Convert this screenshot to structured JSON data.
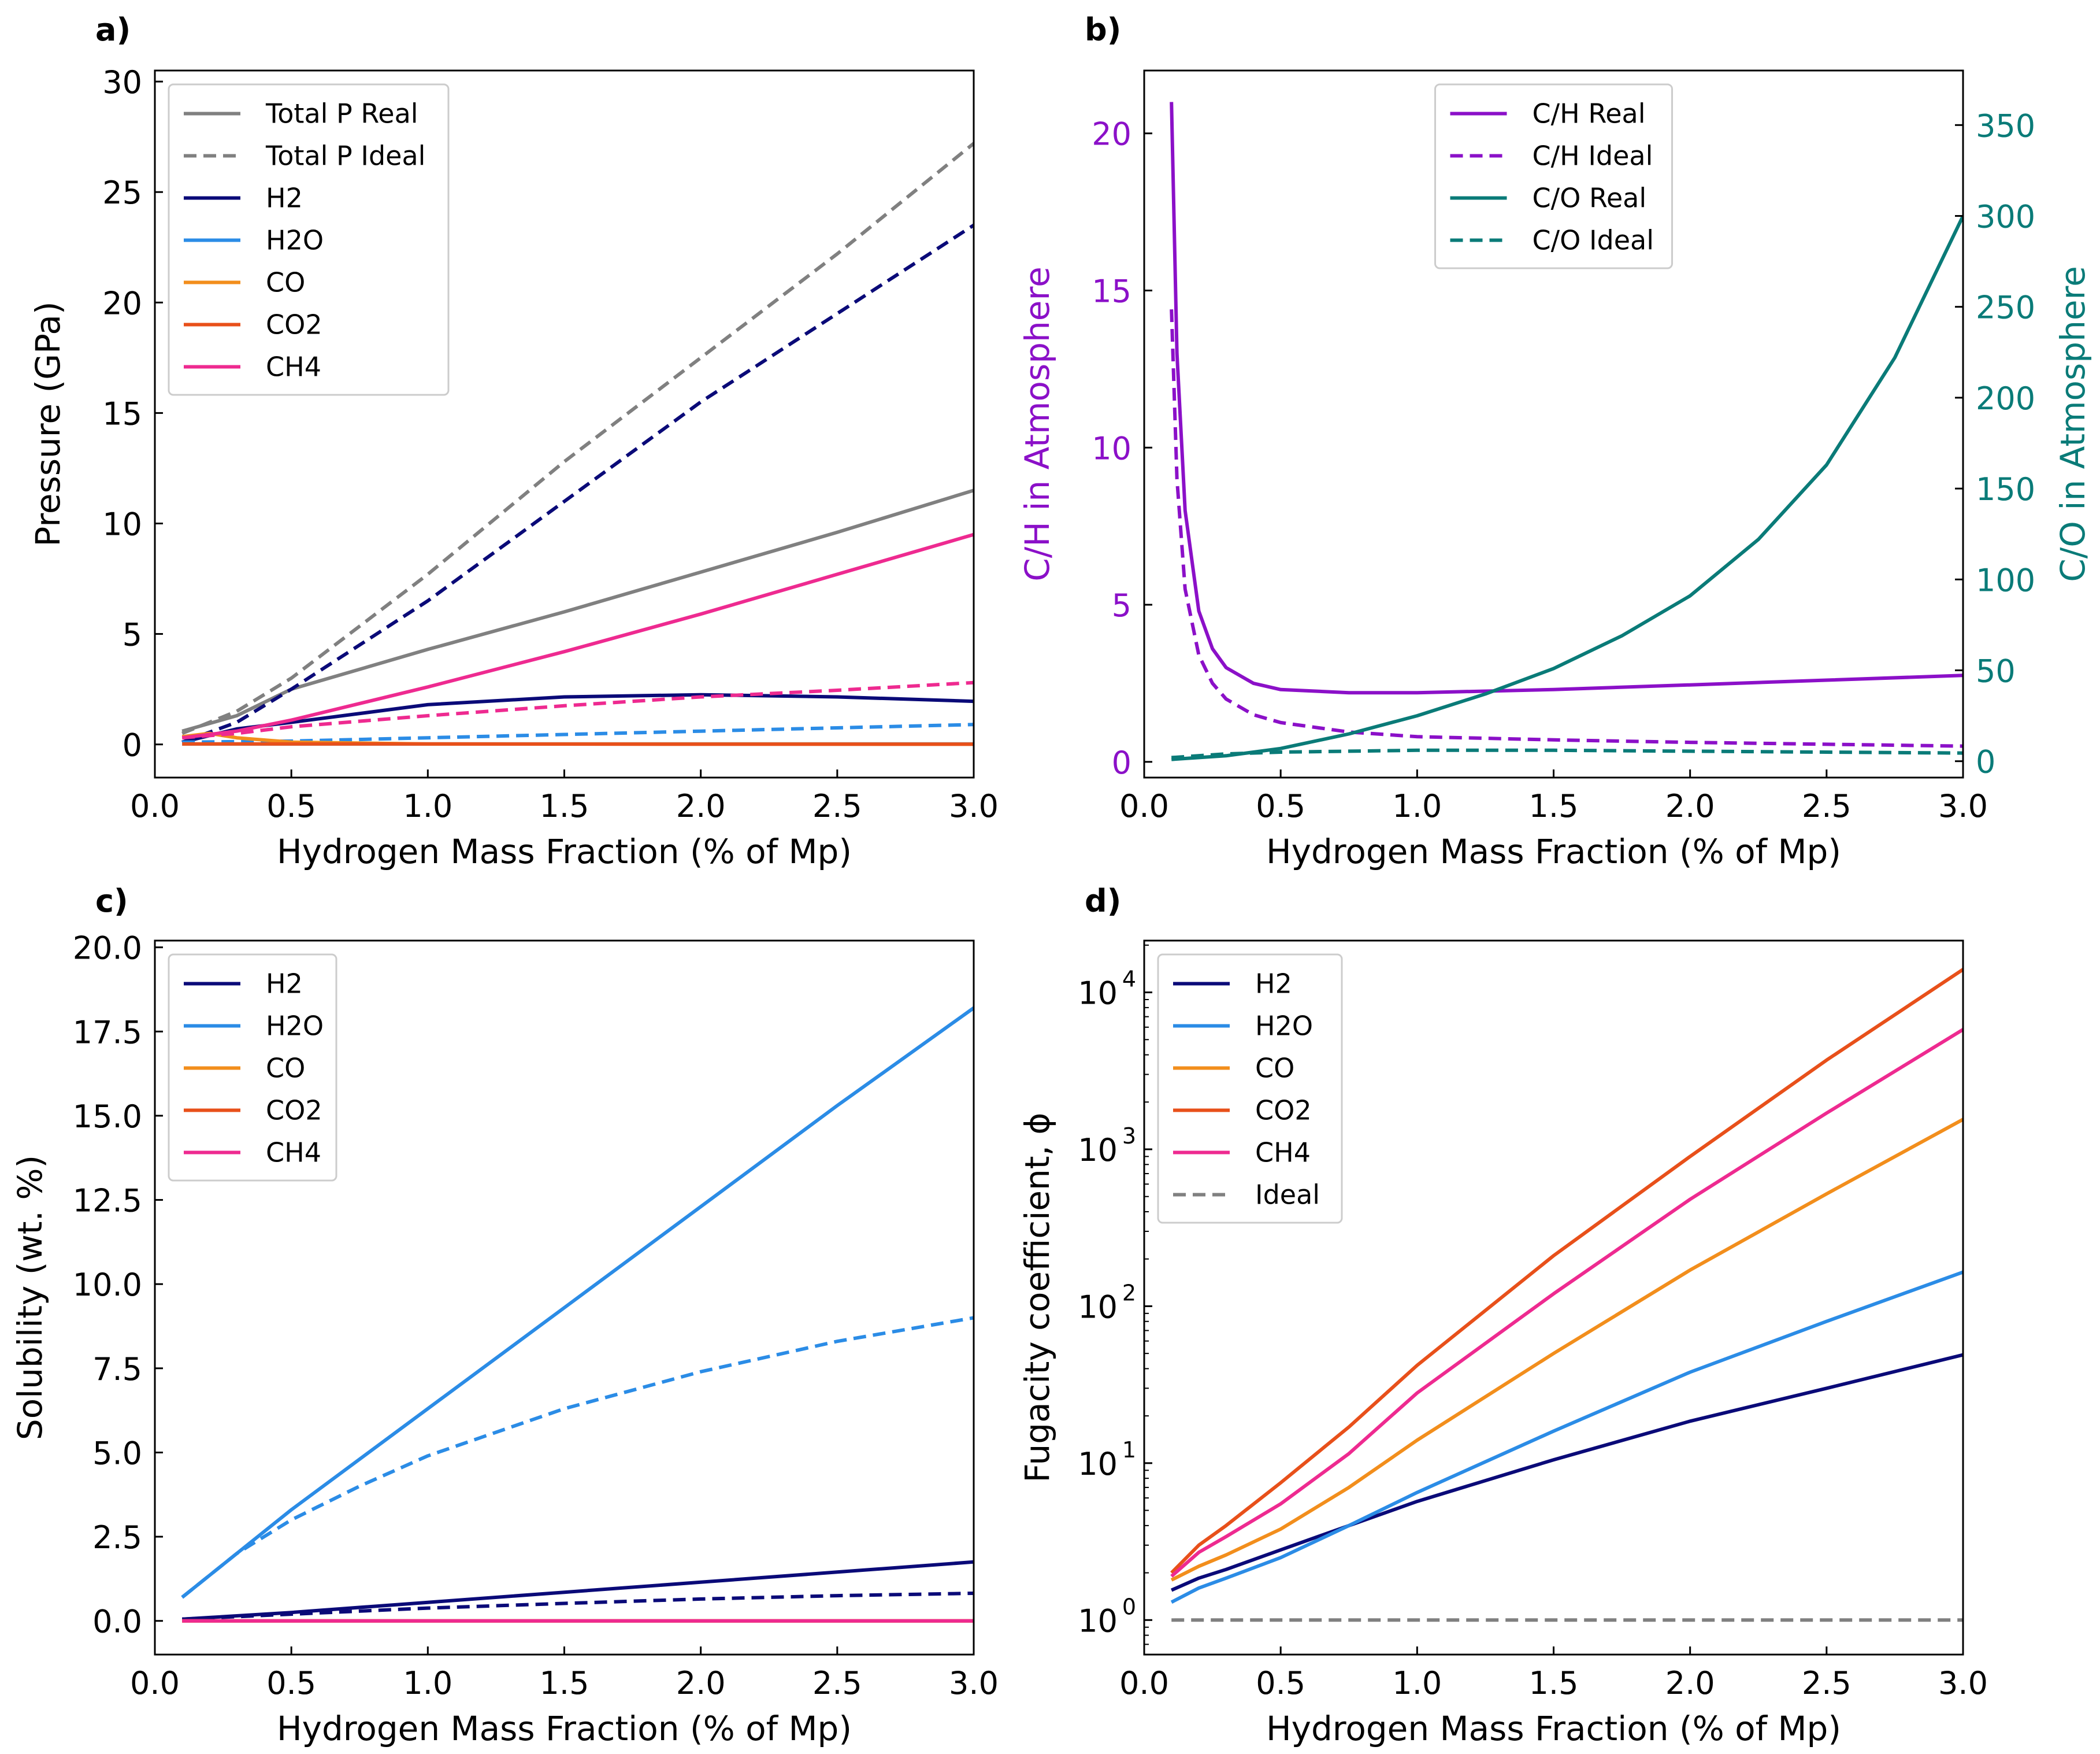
{
  "chart_data": [
    {
      "panel_label": "a)",
      "type": "line",
      "xlabel": "Hydrogen Mass Fraction (% of Mp)",
      "ylabel": "Pressure (GPa)",
      "xlim": [
        0.0,
        3.0
      ],
      "ylim": [
        -1.5,
        30.5
      ],
      "xticks": [
        "0.0",
        "0.5",
        "1.0",
        "1.5",
        "2.0",
        "2.5",
        "3.0"
      ],
      "yticks": [
        "0",
        "5",
        "10",
        "15",
        "20",
        "25",
        "30"
      ],
      "legend": [
        "Total P Real",
        "Total P Ideal",
        "H2",
        "H2O",
        "CO",
        "CO2",
        "CH4"
      ],
      "legend_position": "upper-left",
      "series": [
        {
          "name": "Total P Real",
          "color": "#808080",
          "dash": false,
          "x": [
            0.1,
            0.3,
            0.5,
            1.0,
            1.5,
            2.0,
            2.5,
            3.0
          ],
          "y": [
            0.6,
            1.3,
            2.5,
            4.3,
            6.0,
            7.8,
            9.6,
            11.5
          ]
        },
        {
          "name": "Total P Ideal",
          "color": "#808080",
          "dash": true,
          "x": [
            0.1,
            0.3,
            0.5,
            1.0,
            1.5,
            2.0,
            2.5,
            3.0
          ],
          "y": [
            0.5,
            1.5,
            3.0,
            7.7,
            12.8,
            17.5,
            22.2,
            27.2
          ]
        },
        {
          "name": "H2",
          "color": "#0a0a78",
          "dash": false,
          "x": [
            0.1,
            0.3,
            0.5,
            1.0,
            1.5,
            2.0,
            2.5,
            3.0
          ],
          "y": [
            0.1,
            0.7,
            1.0,
            1.8,
            2.15,
            2.25,
            2.15,
            1.95
          ]
        },
        {
          "name": "H2 Ideal",
          "color": "#0a0a78",
          "dash": true,
          "x": [
            0.1,
            0.3,
            0.5,
            1.0,
            1.5,
            2.0,
            2.5,
            3.0
          ],
          "y": [
            0.1,
            1.0,
            2.5,
            6.5,
            11.0,
            15.5,
            19.5,
            23.5
          ]
        },
        {
          "name": "H2O",
          "color": "#2b8ce6",
          "dash": false,
          "x": [
            0.1,
            0.3,
            0.5,
            1.0,
            1.5,
            2.0,
            2.5,
            3.0
          ],
          "y": [
            0.02,
            0.02,
            0.02,
            0.02,
            0.02,
            0.02,
            0.02,
            0.02
          ]
        },
        {
          "name": "H2O Ideal",
          "color": "#2b8ce6",
          "dash": true,
          "x": [
            0.1,
            0.5,
            1.0,
            1.5,
            2.0,
            2.5,
            3.0
          ],
          "y": [
            0.1,
            0.15,
            0.3,
            0.45,
            0.6,
            0.75,
            0.9
          ]
        },
        {
          "name": "CO",
          "color": "#f28e1c",
          "dash": false,
          "x": [
            0.1,
            0.2,
            0.3,
            0.5,
            1.0,
            3.0
          ],
          "y": [
            0.35,
            0.5,
            0.3,
            0.1,
            0.02,
            0.01
          ]
        },
        {
          "name": "CO2",
          "color": "#e8501a",
          "dash": false,
          "x": [
            0.1,
            0.5,
            1.0,
            2.0,
            3.0
          ],
          "y": [
            0.02,
            0.02,
            0.02,
            0.01,
            0.01
          ]
        },
        {
          "name": "CH4",
          "color": "#ee2a90",
          "dash": false,
          "x": [
            0.1,
            0.3,
            0.5,
            1.0,
            1.5,
            2.0,
            2.5,
            3.0
          ],
          "y": [
            0.3,
            0.6,
            1.1,
            2.6,
            4.2,
            5.9,
            7.7,
            9.5
          ]
        },
        {
          "name": "CH4 Ideal",
          "color": "#ee2a90",
          "dash": true,
          "x": [
            0.1,
            0.3,
            0.5,
            1.0,
            1.5,
            2.0,
            2.5,
            3.0
          ],
          "y": [
            0.3,
            0.5,
            0.8,
            1.3,
            1.75,
            2.15,
            2.45,
            2.8
          ]
        }
      ]
    },
    {
      "panel_label": "b)",
      "type": "line",
      "xlabel": "Hydrogen Mass Fraction (% of Mp)",
      "ylabel": "C/H in Atmosphere",
      "ylabel_color": "#8b10c8",
      "y2label": "C/O in Atmosphere",
      "y2label_color": "#0a7b78",
      "xlim": [
        0.0,
        3.0
      ],
      "ylim": [
        -0.5,
        22.0
      ],
      "y2lim": [
        -9,
        380
      ],
      "xticks": [
        "0.0",
        "0.5",
        "1.0",
        "1.5",
        "2.0",
        "2.5",
        "3.0"
      ],
      "yticks": [
        "0",
        "5",
        "10",
        "15",
        "20"
      ],
      "y2ticks": [
        "0",
        "50",
        "100",
        "150",
        "200",
        "250",
        "300",
        "350"
      ],
      "legend": [
        "C/H Real",
        "C/H Ideal",
        "C/O Real",
        "C/O Ideal"
      ],
      "legend_position": "upper-center",
      "series": [
        {
          "name": "C/H Real",
          "axis": "left",
          "color": "#8b10c8",
          "dash": false,
          "x": [
            0.1,
            0.12,
            0.15,
            0.2,
            0.25,
            0.3,
            0.4,
            0.5,
            0.75,
            1.0,
            1.5,
            2.0,
            2.5,
            3.0
          ],
          "y": [
            21.0,
            13.0,
            8.0,
            4.8,
            3.6,
            3.0,
            2.5,
            2.3,
            2.2,
            2.2,
            2.3,
            2.45,
            2.6,
            2.75
          ]
        },
        {
          "name": "C/H Ideal",
          "axis": "left",
          "color": "#8b10c8",
          "dash": true,
          "x": [
            0.1,
            0.12,
            0.15,
            0.2,
            0.25,
            0.3,
            0.4,
            0.5,
            0.75,
            1.0,
            1.5,
            2.0,
            2.5,
            3.0
          ],
          "y": [
            14.4,
            9.0,
            5.5,
            3.4,
            2.5,
            2.0,
            1.5,
            1.25,
            0.95,
            0.8,
            0.7,
            0.62,
            0.56,
            0.5
          ]
        },
        {
          "name": "C/O Real",
          "axis": "right",
          "color": "#0a7b78",
          "dash": false,
          "x": [
            0.1,
            0.3,
            0.5,
            0.75,
            1.0,
            1.25,
            1.5,
            1.75,
            2.0,
            2.25,
            2.5,
            2.75,
            3.0
          ],
          "y": [
            1,
            3,
            7,
            15,
            25,
            37,
            51,
            69,
            91,
            122,
            163,
            222,
            300
          ]
        },
        {
          "name": "C/O Ideal",
          "axis": "right",
          "color": "#0a7b78",
          "dash": true,
          "x": [
            0.1,
            0.3,
            0.5,
            1.0,
            1.5,
            2.0,
            2.5,
            3.0
          ],
          "y": [
            2,
            4,
            5,
            6,
            6,
            5.5,
            5,
            4.5
          ]
        }
      ]
    },
    {
      "panel_label": "c)",
      "type": "line",
      "xlabel": "Hydrogen Mass Fraction (% of Mp)",
      "ylabel": "Solubility (wt. %)",
      "xlim": [
        0.0,
        3.0
      ],
      "ylim": [
        -1.0,
        20.2
      ],
      "xticks": [
        "0.0",
        "0.5",
        "1.0",
        "1.5",
        "2.0",
        "2.5",
        "3.0"
      ],
      "yticks": [
        "0.0",
        "2.5",
        "5.0",
        "7.5",
        "10.0",
        "12.5",
        "15.0",
        "17.5",
        "20.0"
      ],
      "legend": [
        "H2",
        "H2O",
        "CO",
        "CO2",
        "CH4"
      ],
      "legend_position": "upper-left",
      "series": [
        {
          "name": "H2",
          "color": "#0a0a78",
          "dash": false,
          "x": [
            0.1,
            0.5,
            1.0,
            1.5,
            2.0,
            2.5,
            3.0
          ],
          "y": [
            0.05,
            0.25,
            0.55,
            0.85,
            1.15,
            1.45,
            1.75
          ]
        },
        {
          "name": "H2 Ideal",
          "color": "#0a0a78",
          "dash": true,
          "x": [
            0.1,
            0.5,
            1.0,
            1.5,
            2.0,
            2.5,
            3.0
          ],
          "y": [
            0.05,
            0.2,
            0.38,
            0.52,
            0.65,
            0.75,
            0.82
          ]
        },
        {
          "name": "H2O",
          "color": "#2b8ce6",
          "dash": false,
          "x": [
            0.1,
            0.3,
            0.5,
            1.0,
            1.5,
            2.0,
            2.5,
            3.0
          ],
          "y": [
            0.7,
            2.0,
            3.3,
            6.3,
            9.3,
            12.3,
            15.3,
            18.2
          ]
        },
        {
          "name": "H2O Ideal",
          "color": "#2b8ce6",
          "dash": true,
          "x": [
            0.1,
            0.3,
            0.5,
            0.75,
            1.0,
            1.5,
            2.0,
            2.5,
            3.0
          ],
          "y": [
            0.7,
            2.0,
            3.0,
            4.0,
            4.9,
            6.3,
            7.4,
            8.3,
            9.0
          ]
        },
        {
          "name": "CO",
          "color": "#f28e1c",
          "dash": false,
          "x": [
            0.1,
            3.0
          ],
          "y": [
            0.0,
            0.0
          ]
        },
        {
          "name": "CO2",
          "color": "#e8501a",
          "dash": false,
          "x": [
            0.1,
            3.0
          ],
          "y": [
            0.0,
            0.0
          ]
        },
        {
          "name": "CH4",
          "color": "#ee2a90",
          "dash": false,
          "x": [
            0.1,
            3.0
          ],
          "y": [
            0.0,
            0.0
          ]
        }
      ]
    },
    {
      "panel_label": "d)",
      "type": "line",
      "yscale": "log",
      "xlabel": "Hydrogen Mass Fraction (% of Mp)",
      "ylabel": "Fugacity coefficient, ϕ",
      "xlim": [
        0.0,
        3.0
      ],
      "ylog_lim": [
        -0.22,
        4.33
      ],
      "xticks": [
        "0.0",
        "0.5",
        "1.0",
        "1.5",
        "2.0",
        "2.5",
        "3.0"
      ],
      "yticks_base": [
        "10",
        "10",
        "10",
        "10",
        "10"
      ],
      "yticks_exp": [
        "0",
        "1",
        "2",
        "3",
        "4"
      ],
      "legend": [
        "H2",
        "H2O",
        "CO",
        "CO2",
        "CH4",
        "Ideal"
      ],
      "legend_position": "upper-left",
      "series": [
        {
          "name": "H2",
          "color": "#0a0a78",
          "dash": false,
          "x": [
            0.1,
            0.2,
            0.3,
            0.5,
            0.75,
            1.0,
            1.5,
            2.0,
            2.5,
            3.0
          ],
          "y": [
            1.55,
            1.85,
            2.1,
            2.8,
            4.0,
            5.7,
            10.5,
            18.5,
            30.0,
            49.0
          ]
        },
        {
          "name": "H2O",
          "color": "#2b8ce6",
          "dash": false,
          "x": [
            0.1,
            0.2,
            0.3,
            0.5,
            0.75,
            1.0,
            1.5,
            2.0,
            2.5,
            3.0
          ],
          "y": [
            1.3,
            1.6,
            1.85,
            2.5,
            4.0,
            6.5,
            16.0,
            38.0,
            80.0,
            165.0
          ]
        },
        {
          "name": "CO",
          "color": "#f28e1c",
          "dash": false,
          "x": [
            0.1,
            0.2,
            0.3,
            0.5,
            0.75,
            1.0,
            1.5,
            2.0,
            2.5,
            3.0
          ],
          "y": [
            1.8,
            2.2,
            2.6,
            3.8,
            7.0,
            14.0,
            50.0,
            170.0,
            520.0,
            1550.0
          ]
        },
        {
          "name": "CO2",
          "color": "#e8501a",
          "dash": false,
          "x": [
            0.1,
            0.2,
            0.3,
            0.5,
            0.75,
            1.0,
            1.5,
            2.0,
            2.5,
            3.0
          ],
          "y": [
            2.0,
            3.0,
            4.0,
            7.5,
            17.0,
            42.0,
            210.0,
            900.0,
            3700.0,
            14000.0
          ]
        },
        {
          "name": "CH4",
          "color": "#ee2a90",
          "dash": false,
          "x": [
            0.1,
            0.2,
            0.3,
            0.5,
            0.75,
            1.0,
            1.5,
            2.0,
            2.5,
            3.0
          ],
          "y": [
            1.9,
            2.7,
            3.4,
            5.5,
            11.5,
            28.0,
            120.0,
            480.0,
            1700.0,
            5800.0
          ]
        },
        {
          "name": "Ideal",
          "color": "#808080",
          "dash": true,
          "x": [
            0.1,
            3.0
          ],
          "y": [
            1.0,
            1.0
          ]
        }
      ]
    }
  ]
}
